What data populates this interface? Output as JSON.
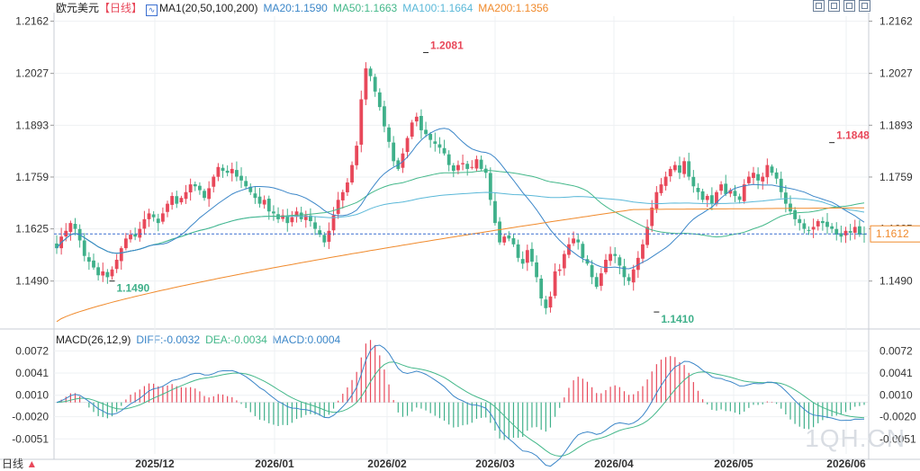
{
  "header": {
    "symbol": "欧元美元",
    "period_tag": "【日线】",
    "ma_label": "MA1(20,50,100,200)",
    "ma20": "MA20:1.1590",
    "ma50": "MA50:1.1663",
    "ma100": "MA100:1.1664",
    "ma200": "MA200:1.1356",
    "tools": [
      "crosshair-icon",
      "expand-icon",
      "layout-icon",
      "settings-icon"
    ]
  },
  "macd_header": {
    "label": "MACD(26,12,9)",
    "diff": "DIFF:-0.0032",
    "dea": "DEA:-0.0034",
    "macd": "MACD:0.0004"
  },
  "footer": {
    "period": "日线",
    "watermark": "1QH.CN"
  },
  "colors": {
    "up": "#e8485a",
    "down": "#3fb08a",
    "ma20": "#3b86c8",
    "ma50": "#44b88a",
    "ma100": "#5ab8d8",
    "ma200": "#f08a2c",
    "price_line": "#3b6fd0",
    "grid": "#eef0f3"
  },
  "chart_data": [
    {
      "type": "candlestick",
      "title": "欧元美元 日线",
      "y_ticks": [
        "1.2162",
        "1.2027",
        "1.1893",
        "1.1759",
        "1.1625",
        "1.1490"
      ],
      "ylim": [
        1.138,
        1.2175
      ],
      "x_ticks": [
        "2025/12",
        "2026/01",
        "2026/02",
        "2026/03",
        "2026/04",
        "2026/05",
        "2026/06"
      ],
      "current_price": "1.1612",
      "annotations": [
        {
          "label": "1.2081",
          "kind": "high",
          "bar": 80
        },
        {
          "label": "1.1410",
          "kind": "low",
          "bar": 130
        },
        {
          "label": "1.1848",
          "kind": "high",
          "bar": 168
        },
        {
          "label": "1.1490",
          "kind": "low",
          "bar": 12
        }
      ],
      "closes": [
        1.1575,
        1.1605,
        1.162,
        1.164,
        1.1625,
        1.1595,
        1.1555,
        1.154,
        1.1525,
        1.1505,
        1.1515,
        1.15,
        1.152,
        1.1545,
        1.1575,
        1.16,
        1.161,
        1.1605,
        1.1625,
        1.165,
        1.1665,
        1.1655,
        1.164,
        1.1665,
        1.169,
        1.171,
        1.169,
        1.1705,
        1.172,
        1.174,
        1.1735,
        1.1725,
        1.1705,
        1.173,
        1.176,
        1.1785,
        1.1775,
        1.177,
        1.178,
        1.176,
        1.175,
        1.1735,
        1.172,
        1.1705,
        1.169,
        1.17,
        1.167,
        1.1665,
        1.165,
        1.166,
        1.164,
        1.1655,
        1.167,
        1.165,
        1.166,
        1.1645,
        1.1625,
        1.161,
        1.159,
        1.162,
        1.166,
        1.17,
        1.172,
        1.1745,
        1.179,
        1.184,
        1.196,
        1.204,
        1.202,
        1.198,
        1.194,
        1.189,
        1.185,
        1.18,
        1.178,
        1.182,
        1.186,
        1.19,
        1.1915,
        1.188,
        1.187,
        1.1855,
        1.1845,
        1.1835,
        1.182,
        1.179,
        1.1775,
        1.179,
        1.1795,
        1.178,
        1.1785,
        1.1805,
        1.178,
        1.177,
        1.17,
        1.164,
        1.159,
        1.1605,
        1.16,
        1.1585,
        1.155,
        1.1535,
        1.157,
        1.154,
        1.15,
        1.1445,
        1.142,
        1.145,
        1.1515,
        1.152,
        1.156,
        1.1585,
        1.16,
        1.159,
        1.155,
        1.1535,
        1.15,
        1.1475,
        1.151,
        1.1545,
        1.156,
        1.1555,
        1.153,
        1.15,
        1.149,
        1.152,
        1.155,
        1.1585,
        1.163,
        1.168,
        1.172,
        1.174,
        1.176,
        1.178,
        1.179,
        1.177,
        1.18,
        1.176,
        1.1735,
        1.172,
        1.17,
        1.171,
        1.169,
        1.172,
        1.174,
        1.1715,
        1.1725,
        1.171,
        1.17,
        1.174,
        1.176,
        1.177,
        1.175,
        1.176,
        1.179,
        1.177,
        1.1755,
        1.172,
        1.169,
        1.167,
        1.165,
        1.164,
        1.1625,
        1.162,
        1.163,
        1.1645,
        1.164,
        1.163,
        1.1625,
        1.161,
        1.1605,
        1.162,
        1.1615,
        1.163,
        1.161,
        1.1612
      ]
    },
    {
      "type": "macd",
      "title": "MACD(26,12,9)",
      "y_ticks": [
        "0.0072",
        "0.0041",
        "0.0010",
        "-0.0020",
        "-0.0051"
      ],
      "ylim": [
        -0.0072,
        0.0085
      ]
    }
  ]
}
